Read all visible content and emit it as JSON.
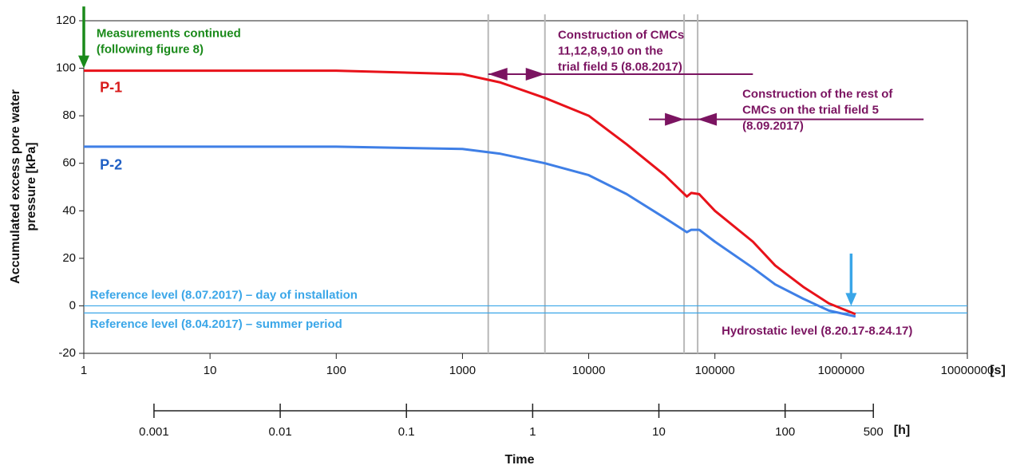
{
  "chart_data": {
    "type": "line",
    "ylabel": [
      "Accumulated excess pore water",
      "pressure [kPa]"
    ],
    "xlabel": "Time",
    "x_unit": "[s]",
    "x2_unit": "[h]",
    "xscale": "log",
    "x": [
      1,
      10,
      100,
      1000,
      2000,
      4500,
      10000,
      20000,
      40000,
      60000,
      65000,
      75000,
      100000,
      200000,
      300000,
      500000,
      800000,
      1300000
    ],
    "series": [
      {
        "name": "P-1",
        "color": "#e8121a",
        "label_color": "#d81a1a",
        "label_x": 1.34,
        "label_y": 91.6,
        "values": [
          99,
          99,
          99,
          97.5,
          94,
          87.5,
          80,
          68,
          55,
          46,
          47.5,
          47,
          40,
          27,
          17,
          8,
          1,
          -3.5
        ]
      },
      {
        "name": "P-2",
        "color": "#3f7fe6",
        "label_color": "#1f5fc4",
        "label_x": 1.34,
        "label_y": 59,
        "values": [
          67,
          67,
          67,
          66,
          64,
          60,
          55,
          47,
          37,
          31,
          32,
          32,
          27,
          16,
          9,
          3,
          -2,
          -4.5
        ]
      }
    ],
    "xlim": [
      1,
      10000000
    ],
    "xticks": [
      1,
      10,
      100,
      1000,
      10000,
      100000,
      1000000,
      10000000
    ],
    "ylim": [
      -20,
      120
    ],
    "yticks": [
      -20,
      0,
      20,
      40,
      60,
      80,
      100,
      120
    ],
    "x2lim": [
      0.000278,
      2778
    ],
    "x2ticks": [
      0.001,
      0.01,
      0.1,
      1,
      10,
      100,
      500
    ],
    "vlines": [
      1600,
      4500,
      57000,
      73000
    ],
    "vline_color": "#b8b8b8",
    "reference_lines": [
      {
        "y": 0,
        "label": "Reference level (8.07.2017) – day of installation",
        "label_x": 1.12,
        "label_y": 4.4
      },
      {
        "y": -3,
        "label": "Reference level (8.04.2017) – summer period",
        "label_x": 1.12,
        "label_y": -8
      }
    ],
    "reference_color": "#3aa6e8",
    "annotations": [
      {
        "lines": [
          "Measurements continued",
          "(following figure 8)"
        ],
        "x": 1.26,
        "y": 114.4,
        "color": "#1a8a1a"
      },
      {
        "lines": [
          "Construction of CMCs",
          "11,12,8,9,10 on the",
          "trial field 5 (8.08.2017)"
        ],
        "x": 5700,
        "y": 113.8,
        "color": "#7b1461"
      },
      {
        "lines": [
          "Construction of the rest of",
          "CMCs on the trial field 5",
          "(8.09.2017)"
        ],
        "x": 165000,
        "y": 89,
        "color": "#7b1461"
      },
      {
        "lines": [
          "Hydrostatic level (8.20.17-8.24.17)"
        ],
        "x": 113000,
        "y": -10.7,
        "color": "#7b1461"
      }
    ],
    "vertical_arrows": [
      {
        "x": 1,
        "y1": 126,
        "y2": 100,
        "color": "#1a8a1a"
      },
      {
        "x": 1200000,
        "y1": 22,
        "y2": 0,
        "color": "#3aa6e8"
      }
    ],
    "span_arrows": [
      {
        "x1": 1600,
        "x2": 200000,
        "y": 97.5,
        "heads": [
          [
            1600,
            -1
          ],
          [
            4500,
            1
          ]
        ],
        "color": "#7b1461"
      },
      {
        "x1": 30000,
        "x2": 4500000,
        "y": 78.5,
        "heads": [
          [
            57000,
            1
          ],
          [
            73000,
            -1
          ]
        ],
        "color": "#7b1461"
      }
    ]
  }
}
